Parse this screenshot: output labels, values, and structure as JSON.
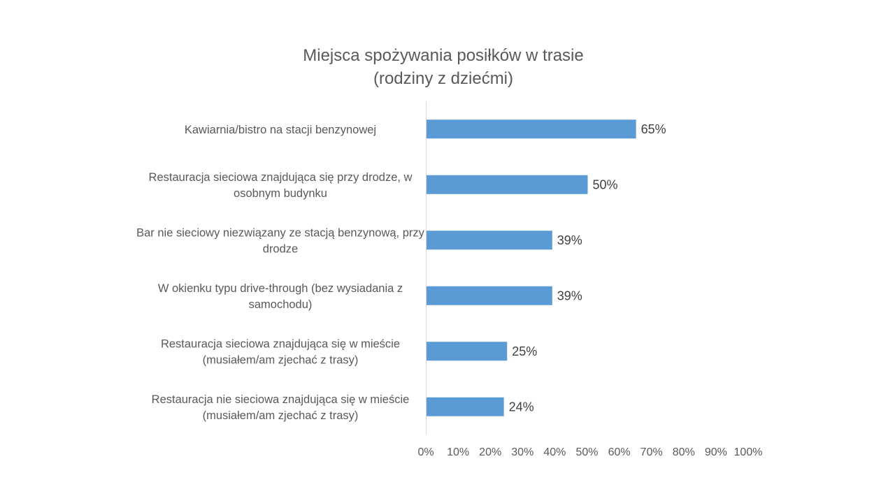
{
  "chart_data": {
    "type": "bar",
    "orientation": "horizontal",
    "title": "Miejsca spożywania posiłków w trasie (rodziny z dziećmi)",
    "title_lines": [
      "Miejsca spożywania posiłków w trasie",
      "(rodziny z dziećmi)"
    ],
    "xlabel": "",
    "ylabel": "",
    "categories": [
      [
        "Kawiarnia/bistro na stacji benzynowej"
      ],
      [
        "Restauracja sieciowa znajdująca się przy drodze, w",
        "osobnym budynku"
      ],
      [
        "Bar nie sieciowy niezwiązany ze stacją benzynową, przy",
        "drodze"
      ],
      [
        "W okienku typu drive-through (bez wysiadania z",
        "samochodu)"
      ],
      [
        "Restauracja sieciowa znajdująca się w mieście",
        "(musiałem/am zjechać z trasy)"
      ],
      [
        "Restauracja nie sieciowa znajdująca się w mieście",
        "(musiałem/am zjechać z trasy)"
      ]
    ],
    "values": [
      65,
      50,
      39,
      39,
      25,
      24
    ],
    "data_labels": [
      "65%",
      "50%",
      "39%",
      "39%",
      "25%",
      "24%"
    ],
    "xlim": [
      0,
      100
    ],
    "x_ticks": [
      0,
      10,
      20,
      30,
      40,
      50,
      60,
      70,
      80,
      90,
      100
    ],
    "x_tick_labels": [
      "0%",
      "10%",
      "20%",
      "30%",
      "40%",
      "50%",
      "60%",
      "70%",
      "80%",
      "90%",
      "100%"
    ],
    "grid": false,
    "legend": "none",
    "colors": {
      "bar": "#5b9bd5",
      "axis": "#d9d9d9",
      "text": "#595959",
      "data_label": "#404040"
    }
  }
}
